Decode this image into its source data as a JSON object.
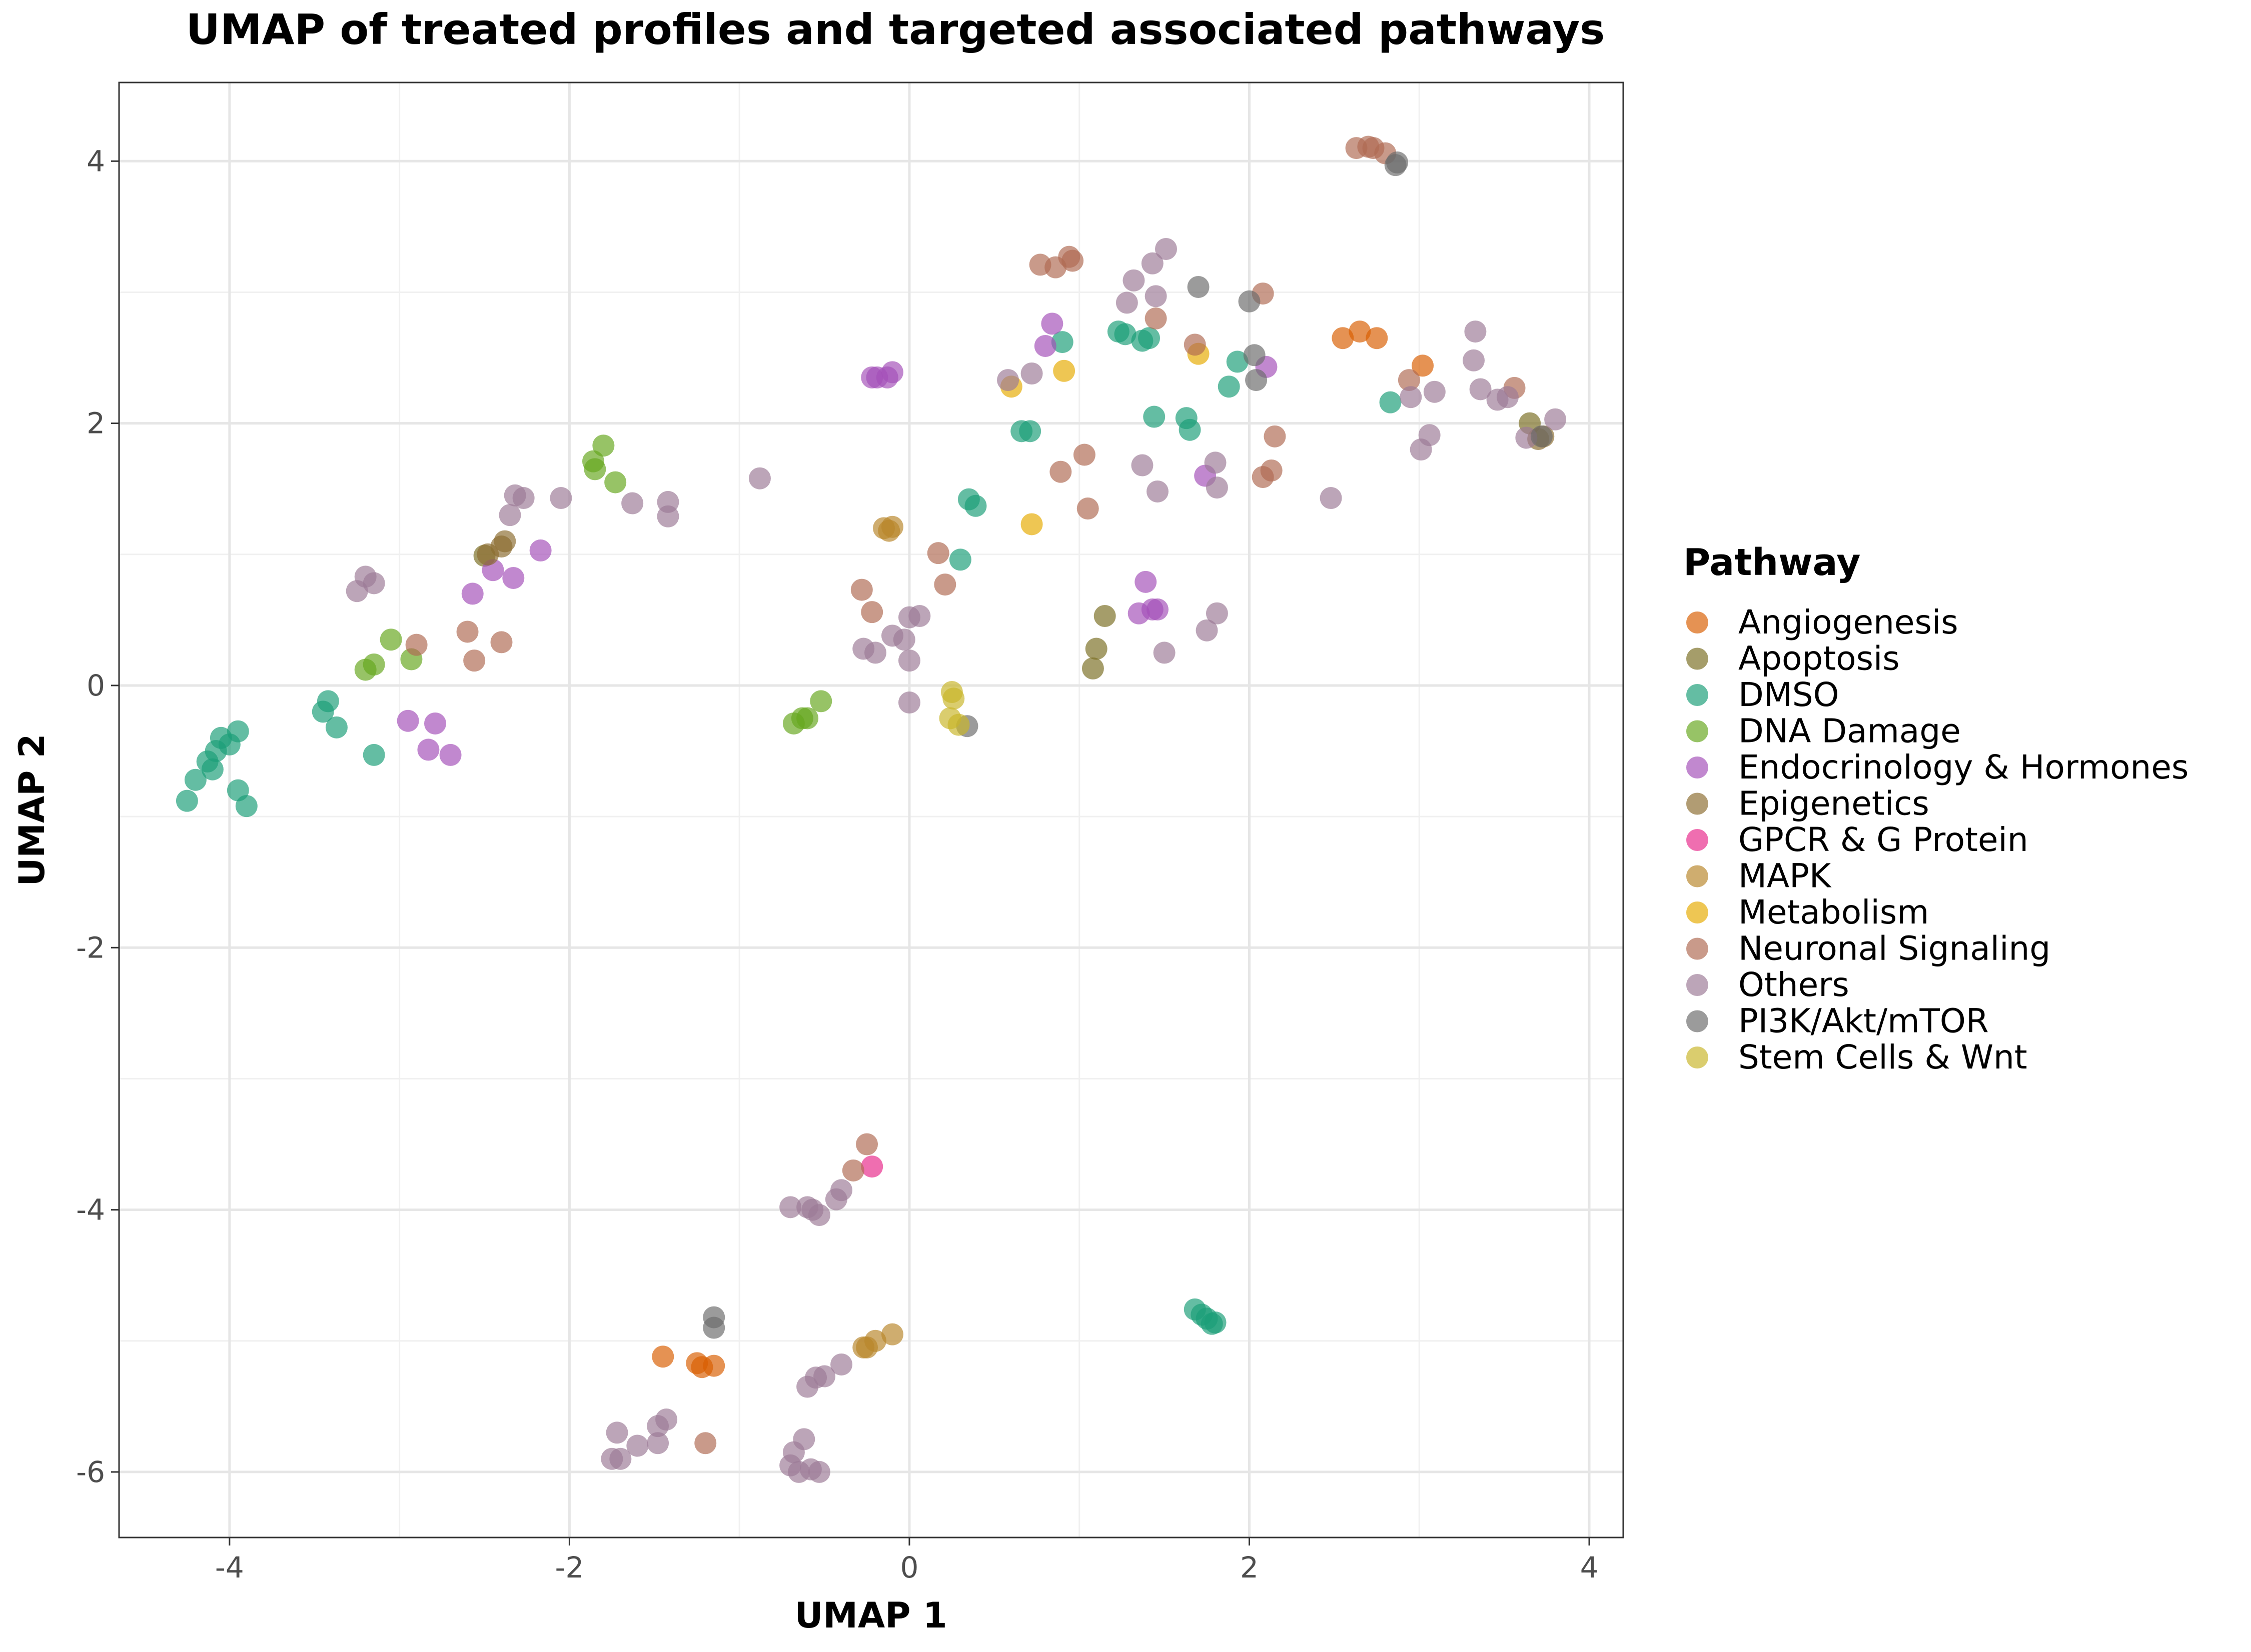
{
  "chart_data": {
    "type": "scatter",
    "title": "UMAP of treated profiles and targeted associated pathways",
    "xlabel": "UMAP 1",
    "ylabel": "UMAP 2",
    "xlim": [
      -4.65,
      4.2
    ],
    "ylim": [
      -6.5,
      4.6
    ],
    "x_ticks": [
      -4,
      -2,
      0,
      2,
      4
    ],
    "y_ticks": [
      -6,
      -4,
      -2,
      0,
      2,
      4
    ],
    "x_tick_labels": [
      "-4",
      "-2",
      "0",
      "2",
      "4"
    ],
    "y_tick_labels": [
      "-6",
      "-4",
      "-2",
      "0",
      "2",
      "4"
    ],
    "grid": true,
    "legend_title": "Pathway",
    "legend_position": "right",
    "series": [
      {
        "name": "Angiogenesis",
        "color": "#d95f02",
        "points": [
          [
            -1.45,
            -5.12
          ],
          [
            -1.22,
            -5.2
          ],
          [
            -1.15,
            -5.19
          ],
          [
            -1.25,
            -5.17
          ],
          [
            2.55,
            2.65
          ],
          [
            2.65,
            2.7
          ],
          [
            2.75,
            2.65
          ],
          [
            3.02,
            2.44
          ]
        ]
      },
      {
        "name": "Apoptosis",
        "color": "#7b6f24",
        "points": [
          [
            3.65,
            2.0
          ],
          [
            1.15,
            0.53
          ],
          [
            1.1,
            0.28
          ],
          [
            1.08,
            0.13
          ],
          [
            -2.5,
            0.99
          ]
        ]
      },
      {
        "name": "DMSO",
        "color": "#1b9e77",
        "points": [
          [
            -4.25,
            -0.88
          ],
          [
            -4.2,
            -0.72
          ],
          [
            -4.13,
            -0.58
          ],
          [
            -4.1,
            -0.64
          ],
          [
            -4.08,
            -0.5
          ],
          [
            -4.05,
            -0.4
          ],
          [
            -4.0,
            -0.45
          ],
          [
            -3.95,
            -0.35
          ],
          [
            -3.95,
            -0.8
          ],
          [
            -3.9,
            -0.92
          ],
          [
            -3.45,
            -0.2
          ],
          [
            -3.42,
            -0.12
          ],
          [
            -3.37,
            -0.32
          ],
          [
            -3.15,
            -0.53
          ],
          [
            0.3,
            0.96
          ],
          [
            0.35,
            1.42
          ],
          [
            0.39,
            1.37
          ],
          [
            0.66,
            1.94
          ],
          [
            0.71,
            1.94
          ],
          [
            0.9,
            2.62
          ],
          [
            1.23,
            2.7
          ],
          [
            1.27,
            2.68
          ],
          [
            1.37,
            2.63
          ],
          [
            1.41,
            2.65
          ],
          [
            1.44,
            2.05
          ],
          [
            1.63,
            2.04
          ],
          [
            1.65,
            1.95
          ],
          [
            1.88,
            2.28
          ],
          [
            1.93,
            2.47
          ],
          [
            2.83,
            2.16
          ],
          [
            1.68,
            -4.76
          ],
          [
            1.72,
            -4.8
          ],
          [
            1.75,
            -4.83
          ],
          [
            1.78,
            -4.87
          ],
          [
            1.8,
            -4.86
          ]
        ]
      },
      {
        "name": "DNA Damage",
        "color": "#66a61e",
        "points": [
          [
            -1.86,
            1.71
          ],
          [
            -1.85,
            1.65
          ],
          [
            -1.8,
            1.83
          ],
          [
            -1.73,
            1.55
          ],
          [
            -3.2,
            0.12
          ],
          [
            -3.15,
            0.16
          ],
          [
            -3.05,
            0.35
          ],
          [
            -2.93,
            0.2
          ],
          [
            -0.68,
            -0.29
          ],
          [
            -0.63,
            -0.25
          ],
          [
            -0.6,
            -0.25
          ],
          [
            -0.52,
            -0.12
          ]
        ]
      },
      {
        "name": "Endocrinology & Hormones",
        "color": "#a450b8",
        "points": [
          [
            -2.57,
            0.7
          ],
          [
            -2.45,
            0.88
          ],
          [
            -2.33,
            0.82
          ],
          [
            -2.17,
            1.03
          ],
          [
            -2.95,
            -0.27
          ],
          [
            -2.83,
            -0.49
          ],
          [
            -2.79,
            -0.29
          ],
          [
            -2.7,
            -0.53
          ],
          [
            -0.22,
            2.35
          ],
          [
            -0.19,
            2.35
          ],
          [
            -0.13,
            2.35
          ],
          [
            -0.1,
            2.39
          ],
          [
            0.8,
            2.59
          ],
          [
            0.84,
            2.76
          ],
          [
            1.35,
            0.55
          ],
          [
            1.39,
            0.79
          ],
          [
            1.43,
            0.58
          ],
          [
            1.46,
            0.58
          ],
          [
            1.74,
            1.6
          ],
          [
            2.1,
            2.43
          ]
        ]
      },
      {
        "name": "Epigenetics",
        "color": "#8c6d31",
        "points": [
          [
            -2.48,
            1.0
          ],
          [
            -2.4,
            1.06
          ],
          [
            -2.38,
            1.1
          ],
          [
            3.7,
            1.88
          ],
          [
            3.73,
            1.9
          ]
        ]
      },
      {
        "name": "GPCR & G Protein",
        "color": "#e7298a",
        "points": [
          [
            -0.22,
            -3.67
          ]
        ]
      },
      {
        "name": "MAPK",
        "color": "#b8862b",
        "points": [
          [
            -0.15,
            1.2
          ],
          [
            -0.12,
            1.18
          ],
          [
            -0.1,
            1.21
          ],
          [
            -0.27,
            -5.05
          ],
          [
            -0.25,
            -5.05
          ],
          [
            -0.2,
            -5.0
          ],
          [
            -0.1,
            -4.95
          ]
        ]
      },
      {
        "name": "Metabolism",
        "color": "#e6ab02",
        "points": [
          [
            0.6,
            2.28
          ],
          [
            0.72,
            1.23
          ],
          [
            0.91,
            2.4
          ],
          [
            1.7,
            2.53
          ]
        ]
      },
      {
        "name": "Neuronal Signaling",
        "color": "#b06a52",
        "points": [
          [
            -2.9,
            0.31
          ],
          [
            -2.6,
            0.41
          ],
          [
            -2.56,
            0.19
          ],
          [
            -2.4,
            0.33
          ],
          [
            -0.28,
            0.73
          ],
          [
            -0.22,
            0.56
          ],
          [
            0.17,
            1.01
          ],
          [
            0.21,
            0.77
          ],
          [
            0.77,
            3.21
          ],
          [
            0.86,
            3.19
          ],
          [
            0.94,
            3.27
          ],
          [
            0.96,
            3.24
          ],
          [
            0.89,
            1.63
          ],
          [
            1.03,
            1.76
          ],
          [
            1.05,
            1.35
          ],
          [
            1.45,
            2.8
          ],
          [
            1.68,
            2.6
          ],
          [
            2.08,
            2.99
          ],
          [
            2.08,
            1.59
          ],
          [
            2.13,
            1.64
          ],
          [
            2.15,
            1.9
          ],
          [
            2.63,
            4.1
          ],
          [
            2.7,
            4.11
          ],
          [
            2.73,
            4.1
          ],
          [
            2.8,
            4.06
          ],
          [
            2.94,
            2.33
          ],
          [
            3.56,
            2.27
          ],
          [
            -0.25,
            -3.5
          ],
          [
            -0.33,
            -3.7
          ],
          [
            -1.2,
            -5.78
          ]
        ]
      },
      {
        "name": "Others",
        "color": "#9c7b96",
        "points": [
          [
            -3.25,
            0.72
          ],
          [
            -3.2,
            0.83
          ],
          [
            -3.15,
            0.78
          ],
          [
            -2.35,
            1.3
          ],
          [
            -2.32,
            1.45
          ],
          [
            -2.27,
            1.43
          ],
          [
            -2.05,
            1.43
          ],
          [
            -1.63,
            1.39
          ],
          [
            -1.42,
            1.29
          ],
          [
            -1.42,
            1.4
          ],
          [
            -0.88,
            1.58
          ],
          [
            -0.27,
            0.28
          ],
          [
            -0.2,
            0.25
          ],
          [
            -0.1,
            0.38
          ],
          [
            -0.03,
            0.35
          ],
          [
            0.0,
            0.19
          ],
          [
            0.0,
            0.52
          ],
          [
            0.06,
            0.53
          ],
          [
            0.0,
            -0.13
          ],
          [
            0.58,
            2.33
          ],
          [
            0.72,
            2.38
          ],
          [
            1.28,
            2.92
          ],
          [
            1.32,
            3.09
          ],
          [
            1.37,
            1.68
          ],
          [
            1.43,
            3.22
          ],
          [
            1.45,
            2.97
          ],
          [
            1.46,
            1.48
          ],
          [
            1.51,
            3.33
          ],
          [
            1.5,
            0.25
          ],
          [
            1.75,
            0.42
          ],
          [
            1.8,
            1.7
          ],
          [
            1.81,
            1.51
          ],
          [
            1.81,
            0.55
          ],
          [
            2.48,
            1.43
          ],
          [
            2.95,
            2.2
          ],
          [
            3.01,
            1.8
          ],
          [
            3.06,
            1.91
          ],
          [
            3.09,
            2.24
          ],
          [
            3.32,
            2.48
          ],
          [
            3.33,
            2.7
          ],
          [
            3.36,
            2.26
          ],
          [
            3.46,
            2.18
          ],
          [
            3.52,
            2.2
          ],
          [
            3.63,
            1.89
          ],
          [
            3.8,
            2.03
          ],
          [
            -0.7,
            -3.98
          ],
          [
            -0.6,
            -3.98
          ],
          [
            -0.57,
            -4.0
          ],
          [
            -0.53,
            -4.04
          ],
          [
            -0.43,
            -3.92
          ],
          [
            -0.4,
            -3.85
          ],
          [
            -0.6,
            -5.35
          ],
          [
            -0.55,
            -5.28
          ],
          [
            -0.5,
            -5.27
          ],
          [
            -0.4,
            -5.18
          ],
          [
            -1.75,
            -5.9
          ],
          [
            -1.7,
            -5.9
          ],
          [
            -1.72,
            -5.7
          ],
          [
            -1.6,
            -5.8
          ],
          [
            -1.48,
            -5.65
          ],
          [
            -1.43,
            -5.6
          ],
          [
            -1.48,
            -5.78
          ],
          [
            -0.7,
            -5.95
          ],
          [
            -0.68,
            -5.85
          ],
          [
            -0.65,
            -6.0
          ],
          [
            -0.62,
            -5.75
          ],
          [
            -0.58,
            -5.98
          ],
          [
            -0.53,
            -6.0
          ]
        ]
      },
      {
        "name": "PI3K/Akt/mTOR",
        "color": "#6b6b6b",
        "points": [
          [
            1.7,
            3.04
          ],
          [
            2.0,
            2.93
          ],
          [
            2.03,
            2.52
          ],
          [
            2.04,
            2.33
          ],
          [
            2.86,
            3.97
          ],
          [
            2.87,
            3.99
          ],
          [
            3.72,
            1.9
          ],
          [
            0.34,
            -0.31
          ],
          [
            -1.15,
            -4.82
          ],
          [
            -1.15,
            -4.9
          ]
        ]
      },
      {
        "name": "Stem Cells &  Wnt",
        "color": "#c8b62a",
        "points": [
          [
            0.25,
            -0.05
          ],
          [
            0.26,
            -0.1
          ],
          [
            0.24,
            -0.25
          ],
          [
            0.29,
            -0.3
          ]
        ]
      }
    ]
  }
}
